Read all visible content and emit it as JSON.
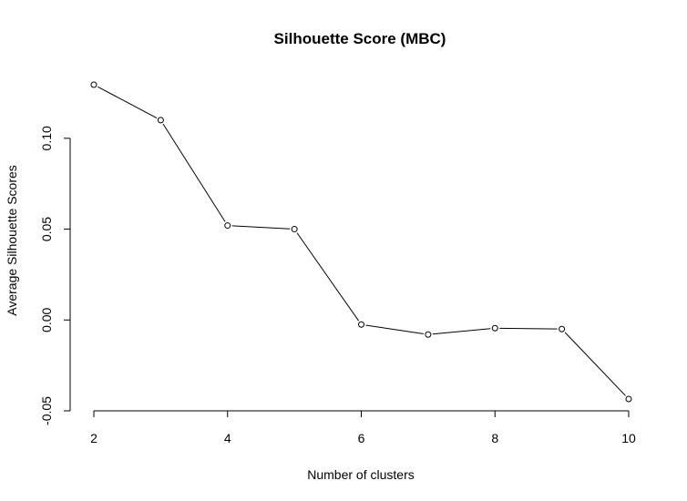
{
  "chart_data": {
    "type": "line",
    "title": "Silhouette Score (MBC)",
    "xlabel": "Number of clusters",
    "ylabel": "Average Silhouette Scores",
    "x": [
      2,
      3,
      4,
      5,
      6,
      7,
      8,
      9,
      10
    ],
    "y": [
      0.1295,
      0.11,
      0.052,
      0.05,
      -0.0025,
      -0.008,
      -0.0045,
      -0.005,
      -0.0435
    ],
    "xticks": [
      2,
      4,
      6,
      8,
      10
    ],
    "xtick_labels": [
      "2",
      "4",
      "6",
      "8",
      "10"
    ],
    "yticks": [
      -0.05,
      0.0,
      0.05,
      0.1
    ],
    "ytick_labels": [
      "-0.05",
      "0.00",
      "0.05",
      "0.10"
    ],
    "xlim": [
      2,
      10
    ],
    "ylim": [
      -0.05,
      0.13
    ],
    "grid": false,
    "marker": "open-circle"
  }
}
